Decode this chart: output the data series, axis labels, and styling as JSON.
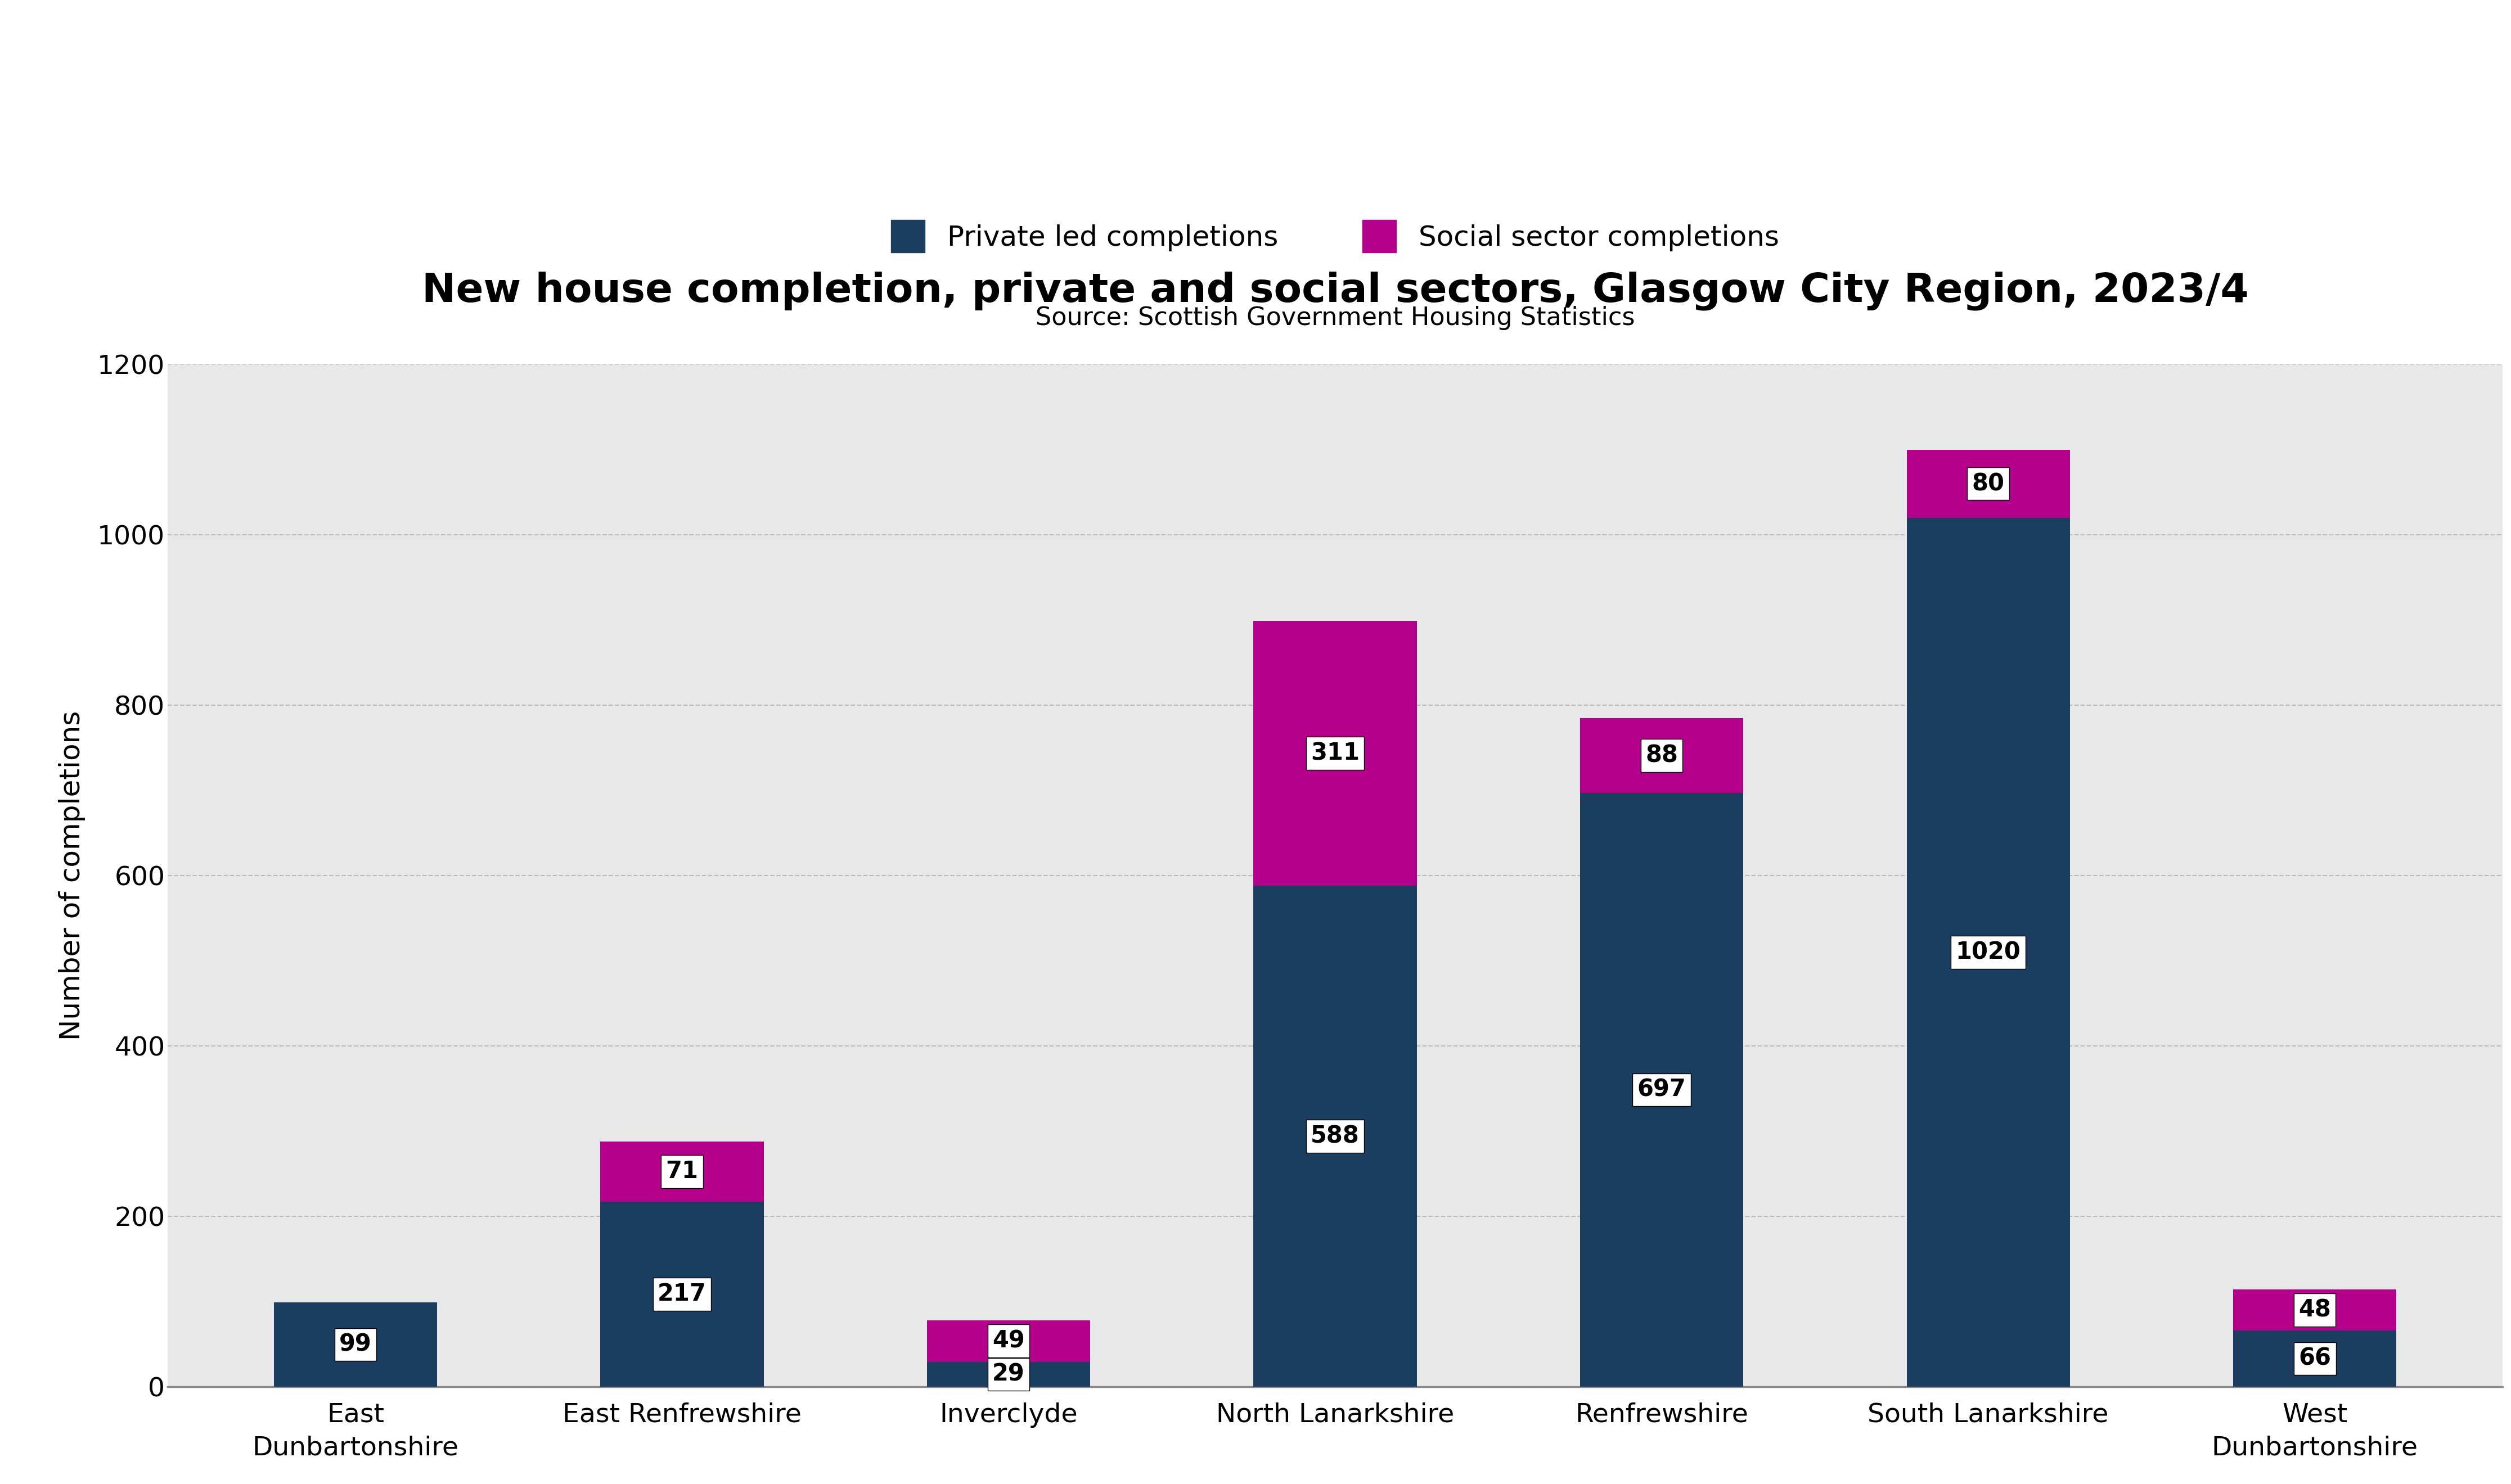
{
  "title": "New house completion, private and social sectors, Glasgow City Region, 2023/4",
  "subtitle": "Source: Scottish Government Housing Statistics",
  "categories": [
    "East\nDunbartonshire",
    "East Renfrewshire",
    "Inverclyde",
    "North Lanarkshire",
    "Renfrewshire",
    "South Lanarkshire",
    "West\nDunbartonshire"
  ],
  "private": [
    99,
    217,
    29,
    588,
    697,
    1020,
    66
  ],
  "social": [
    0,
    71,
    49,
    311,
    88,
    80,
    48
  ],
  "private_color": "#1b3d5f",
  "social_color": "#b5008c",
  "ylabel": "Number of completions",
  "ylim": [
    0,
    1200
  ],
  "yticks": [
    0,
    200,
    400,
    600,
    800,
    1000,
    1200
  ],
  "legend_private": "Private led completions",
  "legend_social": "Social sector completions",
  "fig_background": "#ffffff",
  "plot_background": "#e8e8e8",
  "bar_width": 0.5,
  "title_fontsize": 52,
  "subtitle_fontsize": 32,
  "ylabel_fontsize": 36,
  "tick_fontsize": 34,
  "legend_fontsize": 36,
  "annotation_fontsize": 30
}
